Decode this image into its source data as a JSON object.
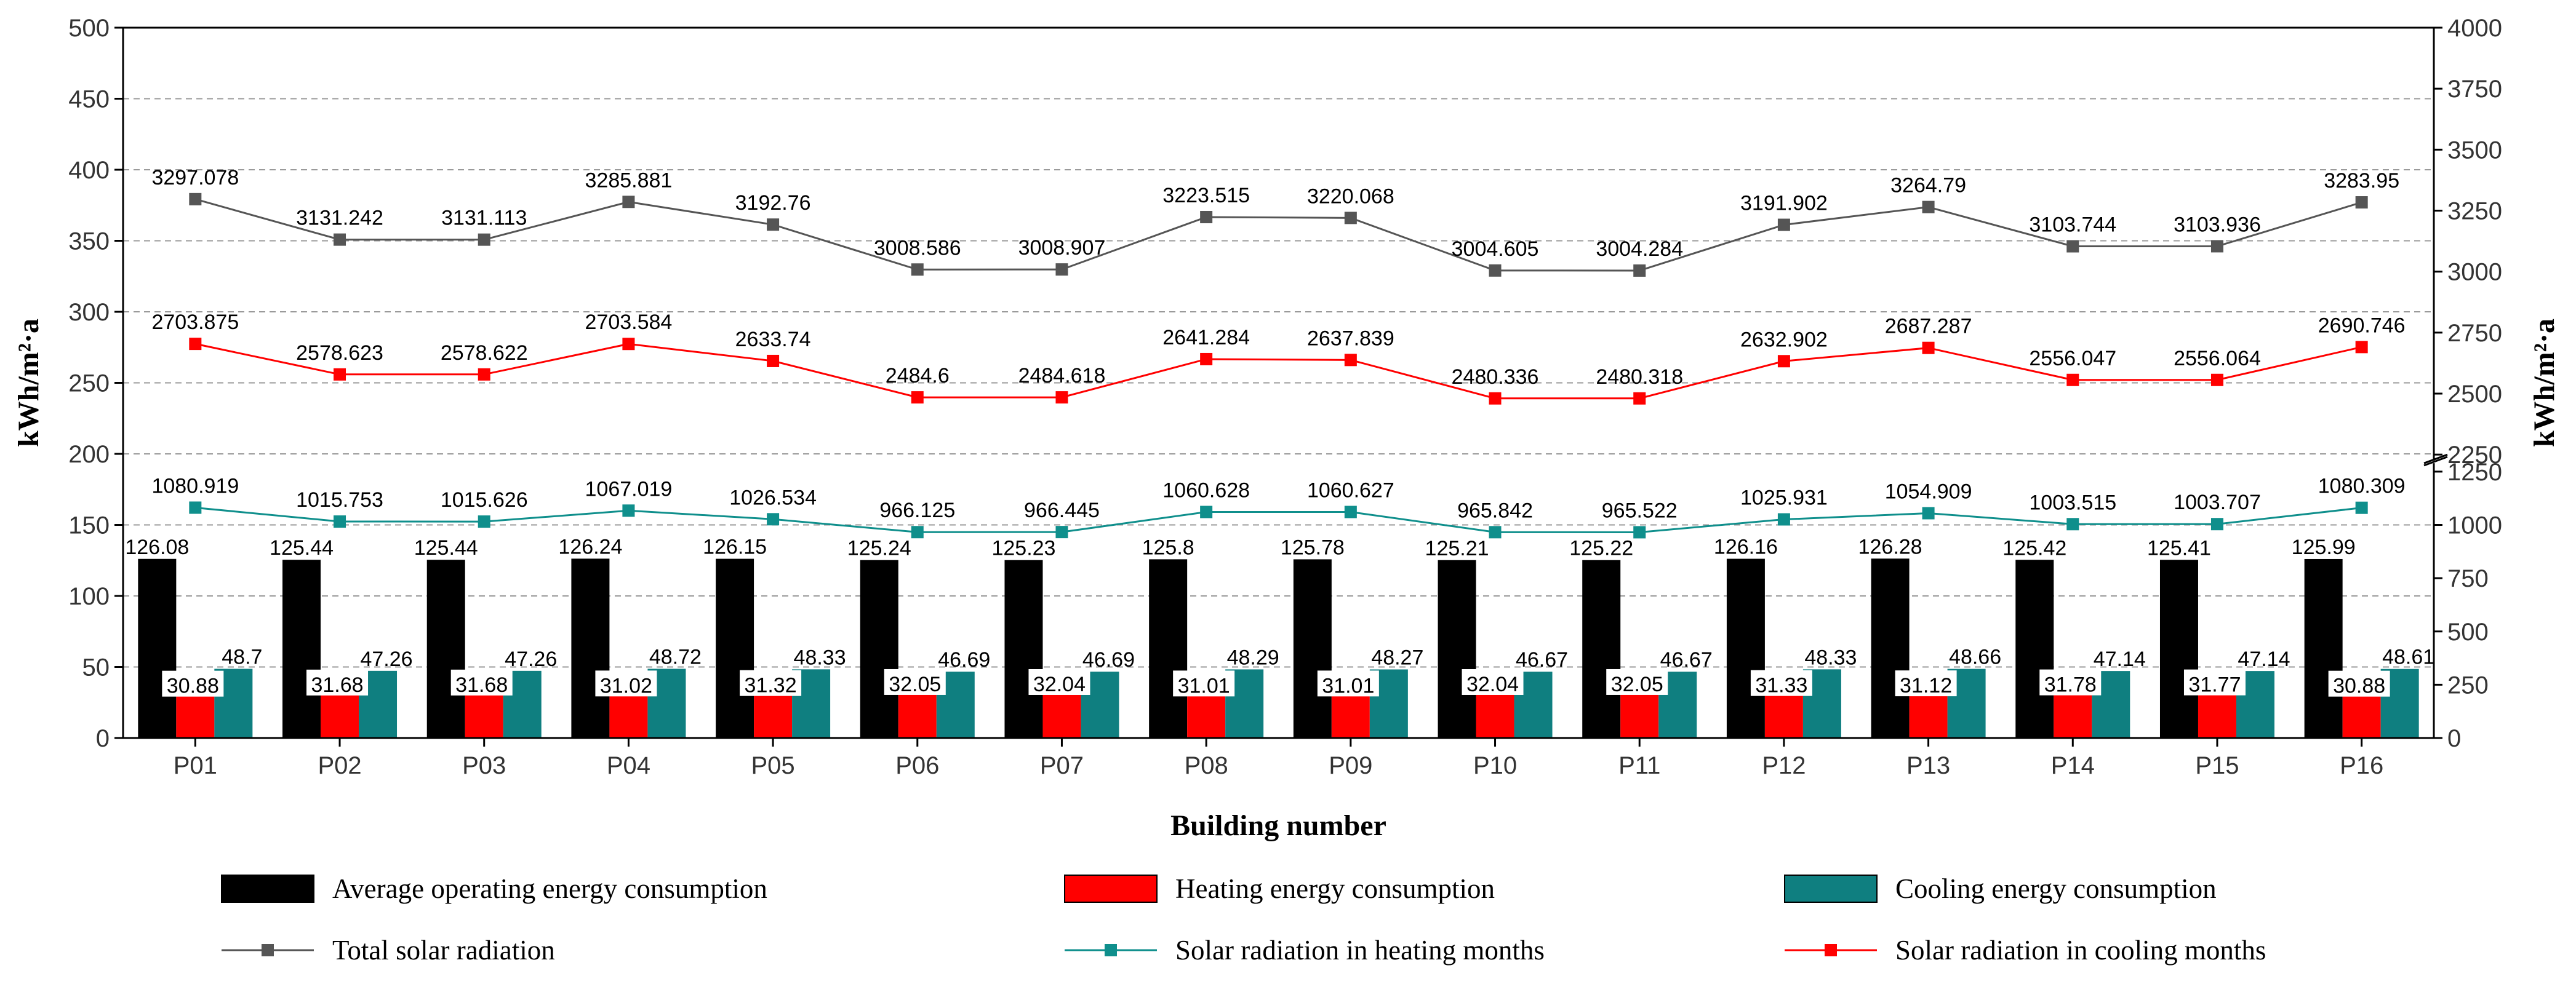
{
  "chart_data": {
    "type": "bar",
    "title": "",
    "xlabel": "Building number",
    "ylabel": "kWh/m²·a",
    "ylabel_right": "kWh/m²·a",
    "ylim_left": [
      0,
      500
    ],
    "ylim_right": [
      0,
      4000
    ],
    "right_axis_break": [
      1250,
      2250
    ],
    "left_ticks": [
      "0",
      "50",
      "100",
      "150",
      "200",
      "250",
      "300",
      "350",
      "400",
      "450",
      "500"
    ],
    "right_ticks_lower": [
      "0",
      "250",
      "500",
      "750",
      "1000",
      "1250"
    ],
    "right_ticks_upper": [
      "2250",
      "2500",
      "2750",
      "3000",
      "3250",
      "3500",
      "3750",
      "4000"
    ],
    "categories": [
      "P01",
      "P02",
      "P03",
      "P04",
      "P05",
      "P06",
      "P07",
      "P08",
      "P09",
      "P10",
      "P11",
      "P12",
      "P13",
      "P14",
      "P15",
      "P16"
    ],
    "bar_series": [
      {
        "name": "Average operating energy consumption",
        "color": "#000000",
        "values": [
          126.08,
          125.44,
          125.44,
          126.24,
          126.15,
          125.24,
          125.23,
          125.8,
          125.78,
          125.21,
          125.22,
          126.16,
          126.28,
          125.42,
          125.41,
          125.99
        ],
        "labels": [
          "126.08",
          "125.44",
          "125.44",
          "126.24",
          "126.15",
          "125.24",
          "125.23",
          "125.8",
          "125.78",
          "125.21",
          "125.22",
          "126.16",
          "126.28",
          "125.42",
          "125.41",
          "125.99"
        ]
      },
      {
        "name": "Heating energy consumption",
        "color": "#ff0000",
        "values": [
          30.88,
          31.68,
          31.68,
          31.02,
          31.32,
          32.05,
          32.04,
          31.01,
          31.01,
          32.04,
          32.05,
          31.33,
          31.12,
          31.78,
          31.77,
          30.88
        ],
        "labels": [
          "30.88",
          "31.68",
          "31.68",
          "31.02",
          "31.32",
          "32.05",
          "32.04",
          "31.01",
          "31.01",
          "32.04",
          "32.05",
          "31.33",
          "31.12",
          "31.78",
          "31.77",
          "30.88"
        ]
      },
      {
        "name": "Cooling energy consumption",
        "color": "#0f7f80",
        "values": [
          48.7,
          47.26,
          47.26,
          48.72,
          48.33,
          46.69,
          46.69,
          48.29,
          48.27,
          46.67,
          46.67,
          48.33,
          48.66,
          47.14,
          47.14,
          48.61
        ],
        "labels": [
          "48.7",
          "47.26",
          "47.26",
          "48.72",
          "48.33",
          "46.69",
          "46.69",
          "48.29",
          "48.27",
          "46.67",
          "46.67",
          "48.33",
          "48.66",
          "47.14",
          "47.14",
          "48.61"
        ]
      }
    ],
    "line_series": [
      {
        "name": "Total solar radiation",
        "color": "#555555",
        "axis": "right",
        "values": [
          3297.078,
          3131.242,
          3131.113,
          3285.881,
          3192.76,
          3008.586,
          3008.907,
          3223.515,
          3220.068,
          3004.605,
          3004.284,
          3191.902,
          3264.79,
          3103.744,
          3103.936,
          3283.95
        ],
        "labels": [
          "3297.078",
          "3131.242",
          "3131.113",
          "3285.881",
          "3192.76",
          "3008.586",
          "3008.907",
          "3223.515",
          "3220.068",
          "3004.605",
          "3004.284",
          "3191.902",
          "3264.79",
          "3103.744",
          "3103.936",
          "3283.95"
        ]
      },
      {
        "name": "Solar radiation in heating months",
        "color": "#0f8f8c",
        "axis": "right",
        "values": [
          1080.919,
          1015.753,
          1015.626,
          1067.019,
          1026.534,
          966.125,
          966.445,
          1060.628,
          1060.627,
          965.842,
          965.522,
          1025.931,
          1054.909,
          1003.515,
          1003.707,
          1080.309
        ],
        "labels": [
          "1080.919",
          "1015.753",
          "1015.626",
          "1067.019",
          "1026.534",
          "966.125",
          "966.445",
          "1060.628",
          "1060.627",
          "965.842",
          "965.522",
          "1025.931",
          "1054.909",
          "1003.515",
          "1003.707",
          "1080.309"
        ]
      },
      {
        "name": "Solar radiation in cooling months",
        "color": "#ff0000",
        "axis": "right",
        "values": [
          2703.875,
          2578.623,
          2578.622,
          2703.584,
          2633.74,
          2484.6,
          2484.618,
          2641.284,
          2637.839,
          2480.336,
          2480.318,
          2632.902,
          2687.287,
          2556.047,
          2556.064,
          2690.746
        ],
        "labels": [
          "2703.875",
          "2578.623",
          "2578.622",
          "2703.584",
          "2633.74",
          "2484.6",
          "2484.618",
          "2641.284",
          "2637.839",
          "2480.336",
          "2480.318",
          "2632.902",
          "2687.287",
          "2556.047",
          "2556.064",
          "2690.746"
        ]
      }
    ],
    "legend": {
      "placement": "bottom",
      "items": [
        {
          "name": "Average operating energy consumption",
          "kind": "bar",
          "color": "#000000"
        },
        {
          "name": "Heating energy consumption",
          "kind": "bar",
          "color": "#ff0000"
        },
        {
          "name": "Cooling energy consumption",
          "kind": "bar",
          "color": "#0f7f80"
        },
        {
          "name": "Total solar radiation",
          "kind": "line",
          "color": "#555555"
        },
        {
          "name": "Solar radiation in heating months",
          "kind": "line",
          "color": "#0f8f8c"
        },
        {
          "name": "Solar radiation in cooling months",
          "kind": "line",
          "color": "#ff0000"
        }
      ]
    },
    "grid": "dashed horizontal"
  }
}
